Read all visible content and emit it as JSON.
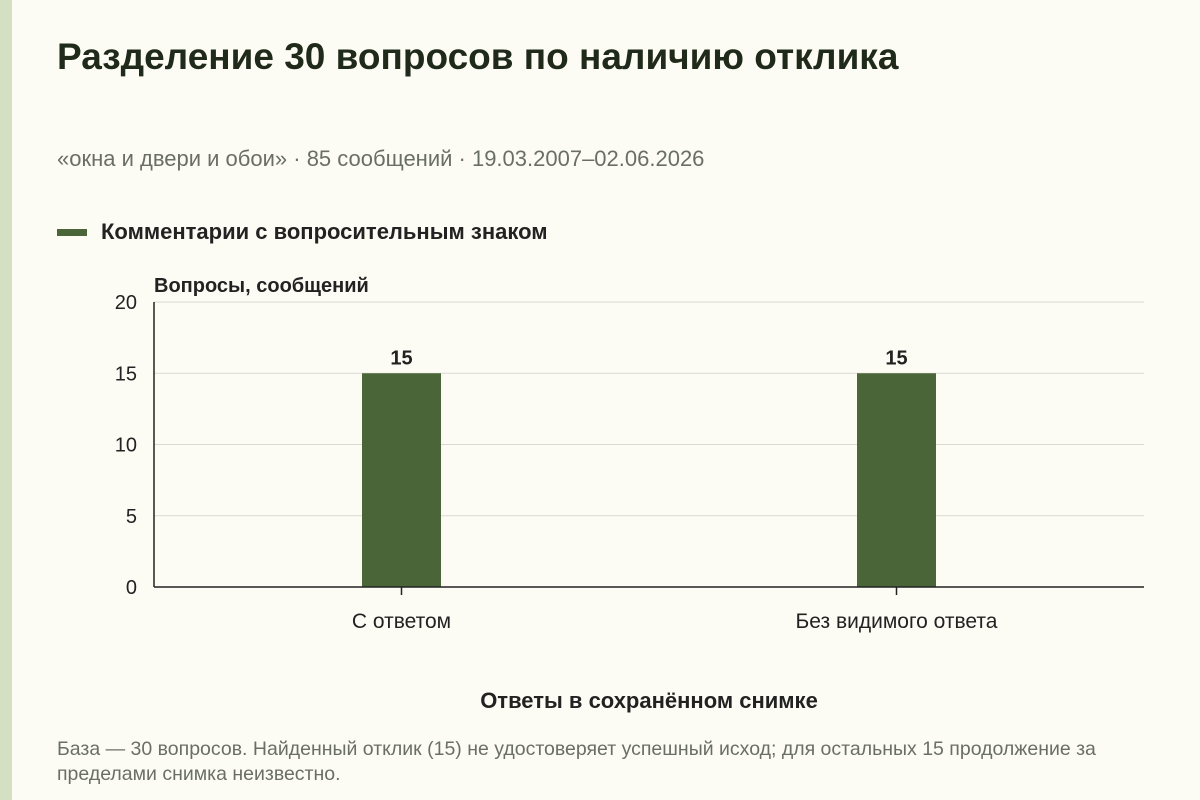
{
  "title": "Разделение 30 вопросов по наличию отклика",
  "subtitle": "«окна и двери и обои» · 85 сообщений · 19.03.2007–02.06.2026",
  "footnote": "База — 30 вопросов. Найденный отклик (15) не удостоверяет успешный исход; для остальных 15 продолжение за пределами снимка неизвестно.",
  "colors": {
    "bar": "#4a6639",
    "grid": "#d9d9d1",
    "axis": "#222222"
  },
  "chart_data": {
    "type": "bar",
    "xlabel": "Ответы в сохранённом снимке",
    "ylabel": "Вопросы, сообщений",
    "categories": [
      "С ответом",
      "Без видимого ответа"
    ],
    "series": [
      {
        "name": "Комментарии с вопросительным знаком",
        "values": [
          15,
          15
        ]
      }
    ],
    "data_labels": [
      "15",
      "15"
    ],
    "ylim": [
      0,
      20
    ],
    "yticks": [
      0,
      5,
      10,
      15,
      20
    ],
    "grid": true,
    "legend_position": "top-left"
  }
}
